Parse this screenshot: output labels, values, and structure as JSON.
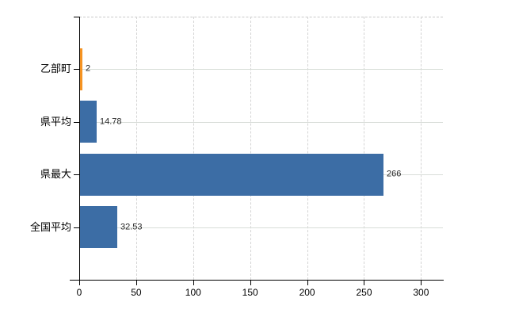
{
  "chart_data": {
    "type": "bar",
    "orientation": "horizontal",
    "title": "",
    "xlabel": "",
    "ylabel": "",
    "categories": [
      "乙部町",
      "県平均",
      "県最大",
      "全国平均"
    ],
    "values": [
      2,
      14.78,
      266,
      32.53
    ],
    "value_labels": [
      "2",
      "14.78",
      "266",
      "32.53"
    ],
    "bar_colors": [
      "#f59322",
      "#3c6da5",
      "#3c6da5",
      "#3c6da5"
    ],
    "x_ticks": [
      0,
      50,
      100,
      150,
      200,
      250,
      300
    ],
    "x_tick_labels": [
      "0",
      "50",
      "100",
      "150",
      "200",
      "250",
      "300"
    ],
    "xlim": [
      0,
      319.2
    ],
    "grid": true,
    "legend": false,
    "colors": {
      "axis": "#000000",
      "grid_vertical": "#d4d4d4",
      "grid_horizontal": "#d9ded9",
      "top_border": "#c9c9c9",
      "value_text": "#262626",
      "tick_text": "#000000",
      "background": "#ffffff"
    }
  }
}
